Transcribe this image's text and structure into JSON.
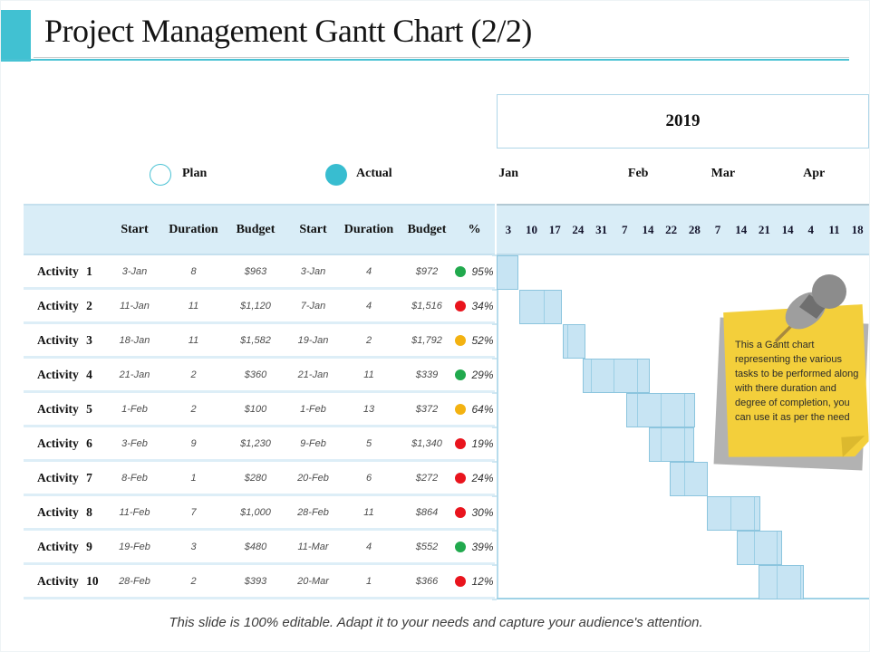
{
  "slide": {
    "title": "Project Management Gantt Chart (2/2)",
    "footer": "This slide is 100% editable. Adapt it to your needs and capture your audience's attention.",
    "accent_color": "#41c1d2"
  },
  "legend": {
    "plan_label": "Plan",
    "actual_label": "Actual"
  },
  "timeline": {
    "year": "2019",
    "months": [
      {
        "label": "Jan",
        "center_pct": 3.2
      },
      {
        "label": "Feb",
        "center_pct": 38.0
      },
      {
        "label": "Mar",
        "center_pct": 60.8
      },
      {
        "label": "Apr",
        "center_pct": 85.2
      }
    ],
    "day_ticks": [
      "3",
      "10",
      "17",
      "24",
      "31",
      "7",
      "14",
      "22",
      "28",
      "7",
      "14",
      "21",
      "14",
      "4",
      "11",
      "18"
    ]
  },
  "table": {
    "column_headers": [
      "Start",
      "Duration",
      "Budget",
      "Start",
      "Duration",
      "Budget",
      "%"
    ],
    "rows": [
      {
        "activity": "Activity 1",
        "plan_start": "3-Jan",
        "plan_duration": "8",
        "plan_budget": "$963",
        "actual_start": "3-Jan",
        "actual_duration": "4",
        "actual_budget": "$972",
        "status_color": "#21a94d",
        "percent": "95%"
      },
      {
        "activity": "Activity 2",
        "plan_start": "11-Jan",
        "plan_duration": "11",
        "plan_budget": "$1,120",
        "actual_start": "7-Jan",
        "actual_duration": "4",
        "actual_budget": "$1,516",
        "status_color": "#e9141d",
        "percent": "34%"
      },
      {
        "activity": "Activity 3",
        "plan_start": "18-Jan",
        "plan_duration": "11",
        "plan_budget": "$1,582",
        "actual_start": "19-Jan",
        "actual_duration": "2",
        "actual_budget": "$1,792",
        "status_color": "#f3b211",
        "percent": "52%"
      },
      {
        "activity": "Activity 4",
        "plan_start": "21-Jan",
        "plan_duration": "2",
        "plan_budget": "$360",
        "actual_start": "21-Jan",
        "actual_duration": "11",
        "actual_budget": "$339",
        "status_color": "#21a94d",
        "percent": "29%"
      },
      {
        "activity": "Activity 5",
        "plan_start": "1-Feb",
        "plan_duration": "2",
        "plan_budget": "$100",
        "actual_start": "1-Feb",
        "actual_duration": "13",
        "actual_budget": "$372",
        "status_color": "#f3b211",
        "percent": "64%"
      },
      {
        "activity": "Activity 6",
        "plan_start": "3-Feb",
        "plan_duration": "9",
        "plan_budget": "$1,230",
        "actual_start": "9-Feb",
        "actual_duration": "5",
        "actual_budget": "$1,340",
        "status_color": "#e9141d",
        "percent": "19%"
      },
      {
        "activity": "Activity 7",
        "plan_start": "8-Feb",
        "plan_duration": "1",
        "plan_budget": "$280",
        "actual_start": "20-Feb",
        "actual_duration": "6",
        "actual_budget": "$272",
        "status_color": "#e9141d",
        "percent": "24%"
      },
      {
        "activity": "Activity 8",
        "plan_start": "11-Feb",
        "plan_duration": "7",
        "plan_budget": "$1,000",
        "actual_start": "28-Feb",
        "actual_duration": "11",
        "actual_budget": "$864",
        "status_color": "#e9141d",
        "percent": "30%"
      },
      {
        "activity": "Activity 9",
        "plan_start": "19-Feb",
        "plan_duration": "3",
        "plan_budget": "$480",
        "actual_start": "11-Mar",
        "actual_duration": "4",
        "actual_budget": "$552",
        "status_color": "#21a94d",
        "percent": "39%"
      },
      {
        "activity": "Activity 10",
        "plan_start": "28-Feb",
        "plan_duration": "2",
        "plan_budget": "$393",
        "actual_start": "20-Mar",
        "actual_duration": "1",
        "actual_budget": "$366",
        "status_color": "#e9141d",
        "percent": "12%"
      }
    ]
  },
  "gantt": {
    "bar_fill": "#c7e4f3",
    "bar_border": "#8cc5de",
    "bars": [
      {
        "left": 0,
        "width": 24
      },
      {
        "left": 25,
        "width": 47
      },
      {
        "left": 73,
        "width": 25
      },
      {
        "left": 95,
        "width": 74
      },
      {
        "left": 143,
        "width": 76
      },
      {
        "left": 168,
        "width": 50
      },
      {
        "left": 191,
        "width": 42
      },
      {
        "left": 232,
        "width": 59
      },
      {
        "left": 265,
        "width": 50
      },
      {
        "left": 289,
        "width": 50
      }
    ]
  },
  "note": {
    "text": "This a Gantt chart representing the various tasks  to be performed along with there duration and degree of completion, you can use it as  per the need",
    "paper_color": "#f3cf3b"
  },
  "chart_data": {
    "type": "table",
    "subtype": "gantt",
    "title": "Project Management Gantt Chart (2/2)",
    "year": "2019",
    "months": [
      "Jan",
      "Feb",
      "Mar",
      "Apr"
    ],
    "week_ticks": [
      "3",
      "10",
      "17",
      "24",
      "31",
      "7",
      "14",
      "22",
      "28",
      "7",
      "14",
      "21",
      "14",
      "4",
      "11",
      "18"
    ],
    "legend": [
      "Plan",
      "Actual"
    ],
    "categories": [
      "Activity 1",
      "Activity 2",
      "Activity 3",
      "Activity 4",
      "Activity 5",
      "Activity 6",
      "Activity 7",
      "Activity 8",
      "Activity 9",
      "Activity 10"
    ],
    "series": [
      {
        "name": "Plan Start",
        "values": [
          "3-Jan",
          "11-Jan",
          "18-Jan",
          "21-Jan",
          "1-Feb",
          "3-Feb",
          "8-Feb",
          "11-Feb",
          "19-Feb",
          "28-Feb"
        ]
      },
      {
        "name": "Plan Duration",
        "values": [
          8,
          11,
          11,
          2,
          2,
          9,
          1,
          7,
          3,
          2
        ]
      },
      {
        "name": "Plan Budget",
        "values": [
          "$963",
          "$1,120",
          "$1,582",
          "$360",
          "$100",
          "$1,230",
          "$280",
          "$1,000",
          "$480",
          "$393"
        ]
      },
      {
        "name": "Actual Start",
        "values": [
          "3-Jan",
          "7-Jan",
          "19-Jan",
          "21-Jan",
          "1-Feb",
          "9-Feb",
          "20-Feb",
          "28-Feb",
          "11-Mar",
          "20-Mar"
        ]
      },
      {
        "name": "Actual Duration",
        "values": [
          4,
          4,
          2,
          11,
          13,
          5,
          6,
          11,
          4,
          1
        ]
      },
      {
        "name": "Actual Budget",
        "values": [
          "$972",
          "$1,516",
          "$1,792",
          "$339",
          "$372",
          "$1,340",
          "$272",
          "$864",
          "$552",
          "$366"
        ]
      },
      {
        "name": "Percent Complete",
        "values": [
          "95%",
          "34%",
          "52%",
          "29%",
          "64%",
          "19%",
          "24%",
          "30%",
          "39%",
          "12%"
        ]
      }
    ],
    "bar_week_spans": [
      [
        0,
        0.9
      ],
      [
        1.0,
        2.8
      ],
      [
        2.8,
        3.8
      ],
      [
        3.7,
        6.6
      ],
      [
        5.6,
        8.5
      ],
      [
        6.5,
        8.5
      ],
      [
        7.4,
        9.1
      ],
      [
        9.0,
        11.3
      ],
      [
        10.3,
        12.3
      ],
      [
        11.2,
        13.2
      ]
    ]
  }
}
